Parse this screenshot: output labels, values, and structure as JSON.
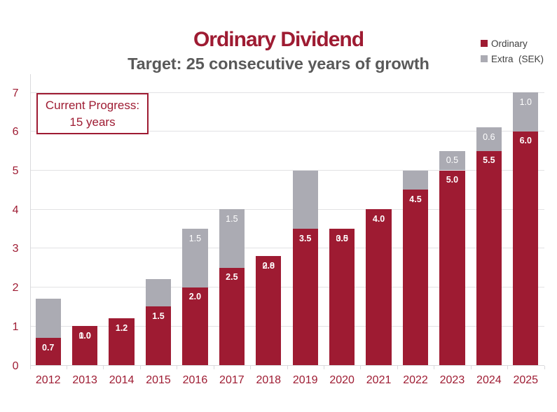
{
  "chart_data": {
    "type": "bar",
    "stacked": true,
    "title": "Ordinary Dividend",
    "subtitle": "Target: 25 consecutive years of growth",
    "title_color": "#9e1b32",
    "subtitle_color": "#595959",
    "categories": [
      "2012",
      "2013",
      "2014",
      "2015",
      "2016",
      "2017",
      "2018",
      "2019",
      "2020",
      "2021",
      "2022",
      "2023",
      "2024",
      "2025"
    ],
    "series": [
      {
        "name": "Ordinary",
        "color": "#9e1b32",
        "values": [
          0.7,
          1.0,
          1.2,
          1.5,
          2.0,
          2.5,
          2.8,
          3.5,
          3.5,
          4.0,
          4.5,
          5.0,
          5.5,
          6.0
        ],
        "labels_shown": [
          true,
          true,
          true,
          true,
          true,
          true,
          true,
          true,
          true,
          true,
          true,
          true,
          true,
          true
        ],
        "label_bold": true
      },
      {
        "name": "Extra  (SEK)",
        "color": "#ababb3",
        "values": [
          1.0,
          0.0,
          0.0,
          0.7,
          1.5,
          1.5,
          0.0,
          1.5,
          0.0,
          0.0,
          0.5,
          0.5,
          0.6,
          1.0
        ],
        "labels_shown": [
          false,
          true,
          false,
          false,
          true,
          true,
          true,
          false,
          true,
          false,
          false,
          true,
          true,
          true
        ],
        "label_bold": false
      }
    ],
    "ylim": [
      0,
      7.47
    ],
    "yticks": [
      0,
      1,
      2,
      3,
      4,
      5,
      6,
      7
    ],
    "grid": true,
    "legend_position": "top-right",
    "axis_tick_color": "#9e1b32",
    "annotation": {
      "line1": "Current Progress:",
      "line2": "15 years",
      "text_color": "#9e1b32",
      "border_color": "#9e1b32"
    }
  }
}
